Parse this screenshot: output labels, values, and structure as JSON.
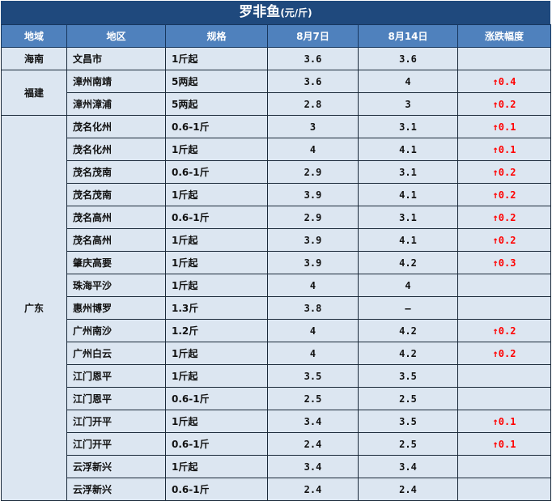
{
  "title": "罗非鱼",
  "unit": "(元/斤)",
  "headers": [
    "地域",
    "地区",
    "规格",
    "8月7日",
    "8月14日",
    "涨跌幅度"
  ],
  "up_arrow": "↑",
  "accent_up": "#ff0000",
  "groups": [
    {
      "region": "海南",
      "rows": [
        [
          "文昌市",
          "1斤起",
          "3.6",
          "3.6",
          ""
        ]
      ]
    },
    {
      "region": "福建",
      "rows": [
        [
          "漳州南靖",
          "5两起",
          "3.6",
          "4",
          "0.4"
        ],
        [
          "漳州漳浦",
          "5两起",
          "2.8",
          "3",
          "0.2"
        ]
      ]
    },
    {
      "region": "广东",
      "rows": [
        [
          "茂名化州",
          "0.6-1斤",
          "3",
          "3.1",
          "0.1"
        ],
        [
          "茂名化州",
          "1斤起",
          "4",
          "4.1",
          "0.1"
        ],
        [
          "茂名茂南",
          "0.6-1斤",
          "2.9",
          "3.1",
          "0.2"
        ],
        [
          "茂名茂南",
          "1斤起",
          "3.9",
          "4.1",
          "0.2"
        ],
        [
          "茂名高州",
          "0.6-1斤",
          "2.9",
          "3.1",
          "0.2"
        ],
        [
          "茂名高州",
          "1斤起",
          "3.9",
          "4.1",
          "0.2"
        ],
        [
          "肇庆高要",
          "1斤起",
          "3.9",
          "4.2",
          "0.3"
        ],
        [
          "珠海平沙",
          "1斤起",
          "4",
          "4",
          ""
        ],
        [
          "惠州博罗",
          "1.3斤",
          "3.8",
          "—",
          ""
        ],
        [
          "广州南沙",
          "1.2斤",
          "4",
          "4.2",
          "0.2"
        ],
        [
          "广州白云",
          "1斤起",
          "4",
          "4.2",
          "0.2"
        ],
        [
          "江门恩平",
          "1斤起",
          "3.5",
          "3.5",
          ""
        ],
        [
          "江门恩平",
          "0.6-1斤",
          "2.5",
          "2.5",
          ""
        ],
        [
          "江门开平",
          "1斤起",
          "3.4",
          "3.5",
          "0.1"
        ],
        [
          "江门开平",
          "0.6-1斤",
          "2.4",
          "2.5",
          "0.1"
        ],
        [
          "云浮新兴",
          "1斤起",
          "3.4",
          "3.4",
          ""
        ],
        [
          "云浮新兴",
          "0.6-1斤",
          "2.4",
          "2.4",
          ""
        ]
      ]
    }
  ]
}
